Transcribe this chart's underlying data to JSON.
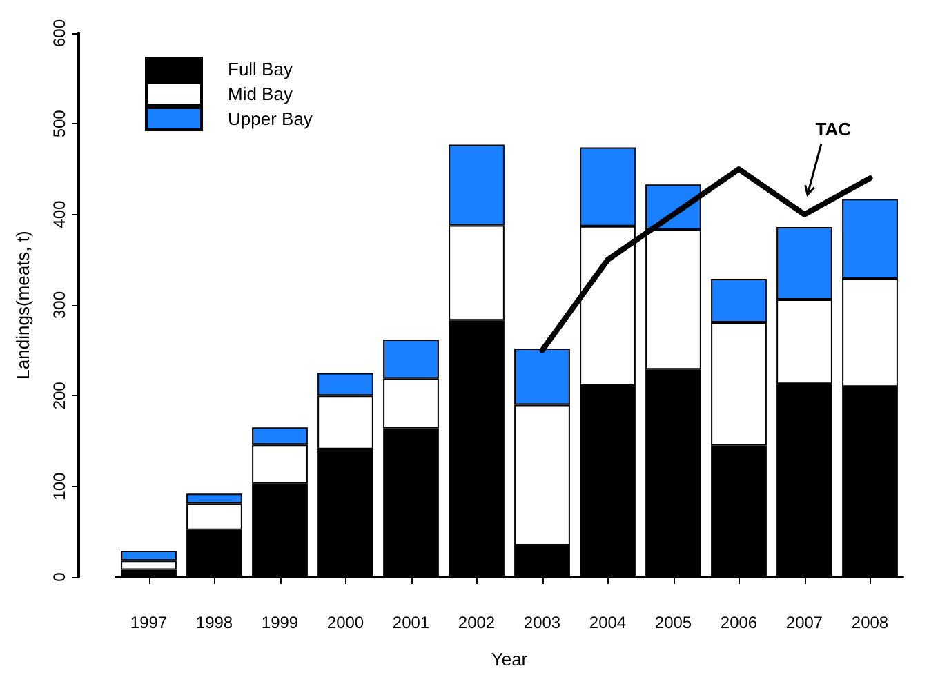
{
  "chart_data": {
    "type": "bar",
    "stacked": true,
    "xlabel": "Year",
    "ylabel": "Landings(meats, t)",
    "categories": [
      "1997",
      "1998",
      "1999",
      "2000",
      "2001",
      "2002",
      "2003",
      "2004",
      "2005",
      "2006",
      "2007",
      "2008"
    ],
    "series": [
      {
        "name": "Full Bay",
        "color": "#000000",
        "values": [
          8,
          52,
          103,
          141,
          164,
          283,
          35,
          211,
          229,
          145,
          213,
          210
        ]
      },
      {
        "name": "Mid Bay",
        "color": "#ffffff",
        "values": [
          10,
          29,
          43,
          59,
          55,
          105,
          155,
          176,
          154,
          136,
          93,
          119
        ]
      },
      {
        "name": "Upper Bay",
        "color": "#1a80ff",
        "values": [
          11,
          11,
          19,
          25,
          43,
          89,
          62,
          87,
          50,
          48,
          80,
          88
        ]
      },
      {
        "name": "TAC",
        "type": "line",
        "color": "#000000",
        "values": [
          null,
          null,
          null,
          null,
          null,
          null,
          250,
          350,
          400,
          450,
          400,
          440
        ]
      }
    ],
    "ylim": [
      0,
      600
    ],
    "yticks": [
      0,
      100,
      200,
      300,
      400,
      500,
      600
    ],
    "grid": false,
    "legend": "top left",
    "marker": "none"
  }
}
